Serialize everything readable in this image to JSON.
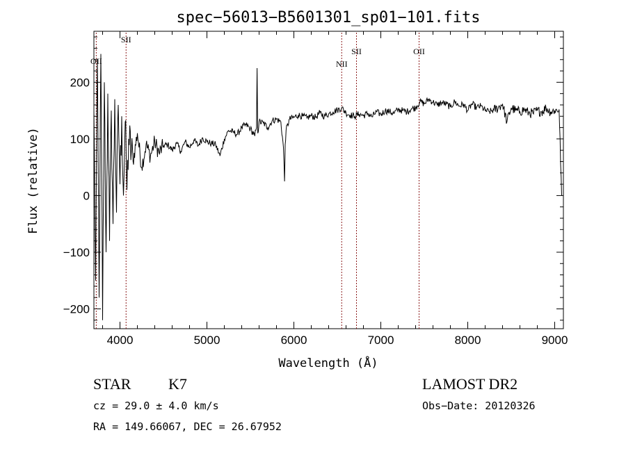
{
  "title": "spec−56013−B5601301_sp01−101.fits",
  "info": {
    "object_class": "STAR",
    "subclass": "K7",
    "survey": "LAMOST DR2",
    "redshift": "cz = 29.0 ± 4.0 km/s",
    "obs_date": "Obs−Date: 20120326",
    "coords": "RA = 149.66067, DEC =  26.67952"
  },
  "colors": {
    "spectrum": "#000000",
    "line_marker": "#8b1a1a",
    "axes": "#000000"
  },
  "chart_data": {
    "type": "line",
    "title": "spec−56013−B5601301_sp01−101.fits",
    "xlabel": "Wavelength (Å)",
    "ylabel": "Flux (relative)",
    "xlim": [
      3700,
      9100
    ],
    "ylim": [
      -235,
      290
    ],
    "x_ticks": [
      4000,
      5000,
      6000,
      7000,
      8000,
      9000
    ],
    "y_ticks": [
      -200,
      -100,
      0,
      100,
      200
    ],
    "grid": false,
    "emission_lines": [
      {
        "label": "OII",
        "wavelength": 3727
      },
      {
        "label": "SII",
        "wavelength": 4070
      },
      {
        "label": "NII",
        "wavelength": 6550
      },
      {
        "label": "SII",
        "wavelength": 6720
      },
      {
        "label": "OII",
        "wavelength": 7440
      }
    ],
    "series": [
      {
        "x": [
          3700,
          3720,
          3740,
          3760,
          3780,
          3800,
          3820,
          3840,
          3860,
          3880,
          3900,
          3920,
          3940,
          3960,
          3980,
          4000,
          4020,
          4040,
          4060,
          4080,
          4100,
          4150,
          4200,
          4250,
          4300,
          4350,
          4400,
          4450,
          4500,
          4550,
          4600,
          4650,
          4700,
          4750,
          4800,
          4850,
          4900,
          4950,
          5000,
          5050,
          5100,
          5150,
          5200,
          5250,
          5300,
          5350,
          5400,
          5450,
          5500,
          5550,
          5570,
          5577,
          5585,
          5600,
          5650,
          5700,
          5750,
          5800,
          5850,
          5880,
          5893,
          5900,
          5910,
          5950,
          6000,
          6050,
          6100,
          6150,
          6200,
          6250,
          6300,
          6350,
          6400,
          6450,
          6500,
          6550,
          6600,
          6650,
          6700,
          6750,
          6800,
          6850,
          6900,
          6950,
          7000,
          7050,
          7100,
          7150,
          7200,
          7250,
          7300,
          7350,
          7400,
          7450,
          7500,
          7550,
          7600,
          7650,
          7700,
          7750,
          7800,
          7850,
          7900,
          7950,
          8000,
          8050,
          8100,
          8150,
          8200,
          8250,
          8300,
          8350,
          8400,
          8450,
          8500,
          8550,
          8600,
          8650,
          8700,
          8750,
          8800,
          8850,
          8900,
          8950,
          9000,
          9050,
          9080
        ],
        "y": [
          150,
          -150,
          240,
          -180,
          250,
          -220,
          200,
          -100,
          180,
          -80,
          150,
          -50,
          170,
          -30,
          160,
          20,
          140,
          0,
          130,
          10,
          100,
          60,
          110,
          50,
          90,
          70,
          95,
          75,
          88,
          90,
          80,
          92,
          78,
          95,
          85,
          98,
          88,
          102,
          95,
          92,
          90,
          70,
          100,
          115,
          112,
          108,
          120,
          125,
          118,
          105,
          120,
          225,
          110,
          130,
          128,
          120,
          132,
          135,
          130,
          85,
          25,
          90,
          115,
          135,
          138,
          142,
          140,
          137,
          141,
          138,
          146,
          140,
          144,
          148,
          151,
          155,
          146,
          142,
          140,
          144,
          141,
          145,
          139,
          148,
          143,
          150,
          148,
          145,
          152,
          150,
          148,
          153,
          155,
          166,
          162,
          170,
          165,
          160,
          164,
          162,
          156,
          166,
          158,
          161,
          150,
          162,
          155,
          158,
          150,
          148,
          151,
          155,
          162,
          130,
          155,
          150,
          148,
          152,
          146,
          145,
          150,
          148,
          155,
          148,
          150,
          152,
          0
        ]
      }
    ]
  }
}
